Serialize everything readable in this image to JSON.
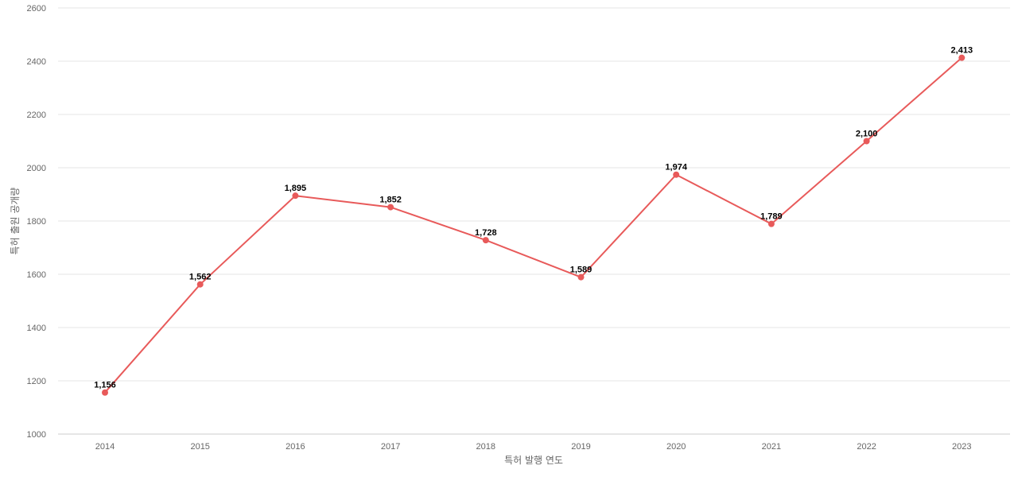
{
  "chart_data": {
    "type": "line",
    "title": "",
    "xlabel": "특허 발행 연도",
    "ylabel": "특허 출원 공개량",
    "categories": [
      "2014",
      "2015",
      "2016",
      "2017",
      "2018",
      "2019",
      "2020",
      "2021",
      "2022",
      "2023"
    ],
    "series": [
      {
        "values": [
          1156,
          1562,
          1895,
          1852,
          1728,
          1589,
          1974,
          1789,
          2100,
          2413
        ],
        "data_labels": [
          "1,156",
          "1,562",
          "1,895",
          "1,852",
          "1,728",
          "1,589",
          "1,974",
          "1,789",
          "2,100",
          "2,413"
        ],
        "color": "#e85a5a"
      }
    ],
    "ylim": [
      1000,
      2600
    ],
    "yticks": [
      1000,
      1200,
      1400,
      1600,
      1800,
      2000,
      2200,
      2400,
      2600
    ],
    "grid": true,
    "legend": "none"
  }
}
